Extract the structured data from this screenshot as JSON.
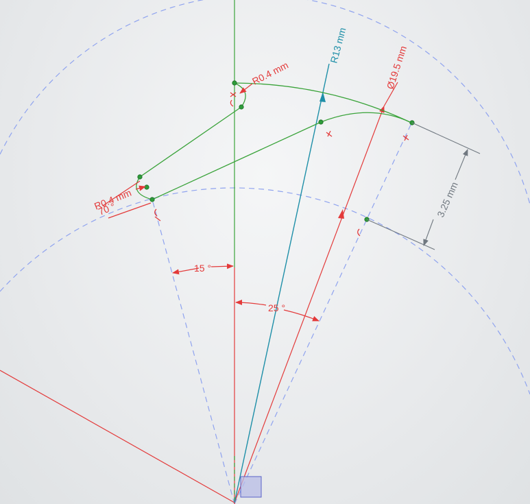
{
  "dimensions": {
    "radius_outer_label": "R13 mm",
    "diameter_label": "Ø19.5 mm",
    "fillet_top_label": "R0.4 mm",
    "fillet_left_label": "R0.4 mm",
    "height_label": "3.25 mm",
    "angle_left_label": "15 °",
    "angle_right_label": "25 °",
    "angle_small_label": "70 °"
  },
  "colors": {
    "geometry": "#3aa33a",
    "construction": "#8fa3ef",
    "dimension": "#e33a3a",
    "radius_dimension": "#1e8fa8",
    "reference_dimension": "#707880",
    "origin_marker": "#b8bce6"
  },
  "icons": {
    "origin": "origin-square-icon",
    "constraint": "coincident-constraint-icon"
  }
}
